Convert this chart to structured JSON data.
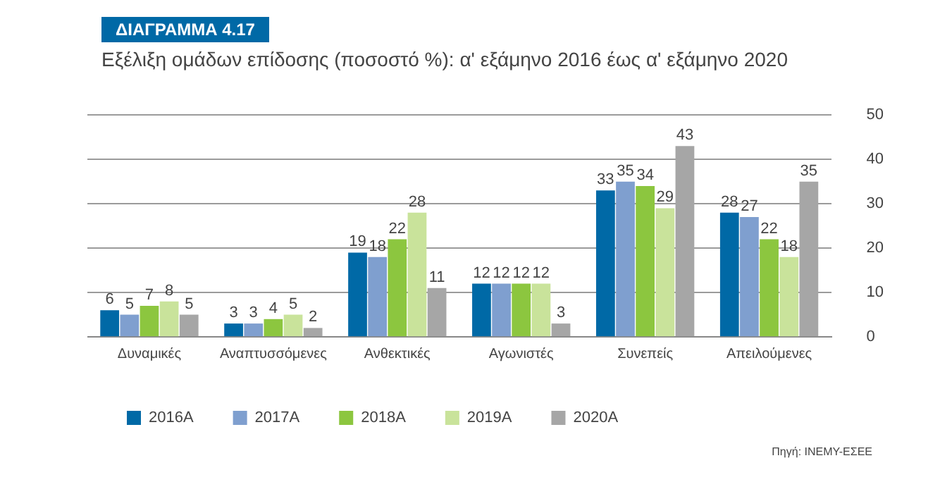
{
  "chart_data": {
    "type": "bar",
    "title": "ΔΙΑΓΡΑΜΜΑ 4.17",
    "subtitle": "Εξέλιξη ομάδων επίδοσης (ποσοστό %): α' εξάμηνο 2016 έως α' εξάμηνο 2020",
    "categories": [
      "Δυναμικές",
      "Αναπτυσσόμενες",
      "Ανθεκτικές",
      "Αγωνιστές",
      "Συνεπείς",
      "Απειλούμενες"
    ],
    "series": [
      {
        "name": "2016Α",
        "color": "#0069a6",
        "values": [
          6,
          3,
          19,
          12,
          33,
          28
        ]
      },
      {
        "name": "2017Α",
        "color": "#7f9fcf",
        "values": [
          5,
          3,
          18,
          12,
          35,
          27
        ]
      },
      {
        "name": "2018Α",
        "color": "#8cc63f",
        "values": [
          7,
          4,
          22,
          12,
          34,
          22
        ]
      },
      {
        "name": "2019Α",
        "color": "#c9e39b",
        "values": [
          8,
          5,
          28,
          12,
          29,
          18
        ]
      },
      {
        "name": "2020Α",
        "color": "#a6a6a6",
        "values": [
          5,
          2,
          11,
          3,
          43,
          35
        ]
      }
    ],
    "ylim": [
      0,
      50
    ],
    "yticks": [
      0,
      10,
      20,
      30,
      40,
      50
    ],
    "grid": "y",
    "legend": "bottom left",
    "data_labels": true,
    "annotations": [
      "Πηγή: ΙΝΕΜΥ-ΕΣΕΕ"
    ]
  }
}
